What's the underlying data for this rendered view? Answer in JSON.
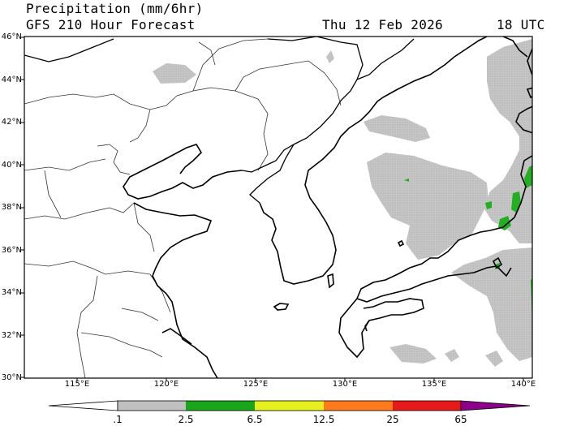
{
  "header": {
    "title": "Precipitation (mm/6hr)",
    "subtitle": "GFS 210 Hour Forecast",
    "valid_date": "Thu 12 Feb 2026",
    "valid_hour": "18 UTC"
  },
  "map": {
    "lat_ticks": [
      "46°N",
      "44°N",
      "42°N",
      "40°N",
      "38°N",
      "36°N",
      "34°N",
      "32°N",
      "30°N"
    ],
    "lon_ticks": [
      "115°E",
      "120°E",
      "125°E",
      "130°E",
      "135°E",
      "140°E"
    ],
    "lat_range": [
      30,
      46
    ],
    "lon_range": [
      112.5,
      142
    ]
  },
  "colorbar": {
    "labels": [
      ".1",
      "2.5",
      "6.5",
      "12.5",
      "25",
      "65"
    ],
    "colors": [
      "#c0c0c0",
      "#1aa61a",
      "#e6f01e",
      "#ff7a1a",
      "#e61a1a",
      "#8c008c"
    ]
  },
  "legend_colors": {
    "light": "#c8c8c8",
    "moderate": "#22b022",
    "heavy": "#e8f024"
  }
}
